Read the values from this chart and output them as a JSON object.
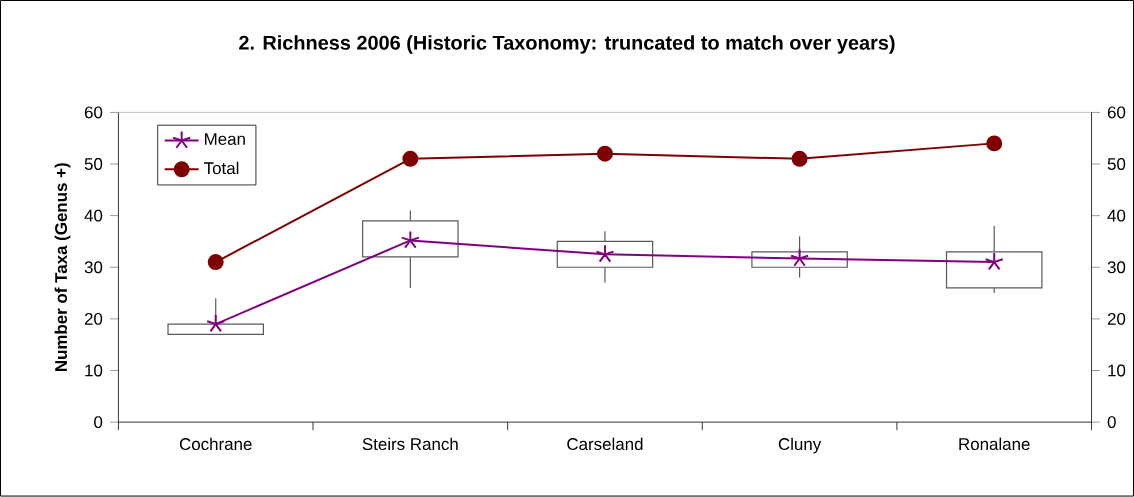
{
  "chart_data": {
    "type": "line",
    "title": "2.  Richness 2006 (Historic Taxonomy: truncated to match over years)",
    "ylabel": "Number of Taxa (Genus  +)",
    "categories": [
      "Cochrane",
      "Steirs Ranch",
      "Carseland",
      "Cluny",
      "Ronalane"
    ],
    "series": [
      {
        "type": "box",
        "color": "#595959",
        "boxes": [
          {
            "low": 17,
            "q1": 17,
            "q3": 19,
            "high": 24
          },
          {
            "low": 26,
            "q1": 32,
            "q3": 39,
            "high": 41
          },
          {
            "low": 27,
            "q1": 30,
            "q3": 35,
            "high": 37
          },
          {
            "low": 28,
            "q1": 30,
            "q3": 33,
            "high": 36
          },
          {
            "low": 25,
            "q1": 26,
            "q3": 33,
            "high": 38
          }
        ]
      },
      {
        "name": "Mean",
        "color": "#800080",
        "marker": "cross",
        "values": [
          19,
          35.2,
          32.5,
          31.7,
          31
        ]
      },
      {
        "name": "Total",
        "color": "#800000",
        "marker": "circle",
        "values": [
          31,
          51,
          52,
          51,
          54
        ]
      }
    ],
    "ylim": [
      0,
      60
    ],
    "yticks": [
      0,
      10,
      20,
      30,
      40,
      50,
      60
    ],
    "y2lim": [
      0,
      60
    ],
    "y2ticks": [
      0,
      10,
      20,
      30,
      40,
      50,
      60
    ],
    "legend": "top left",
    "grid": false
  }
}
